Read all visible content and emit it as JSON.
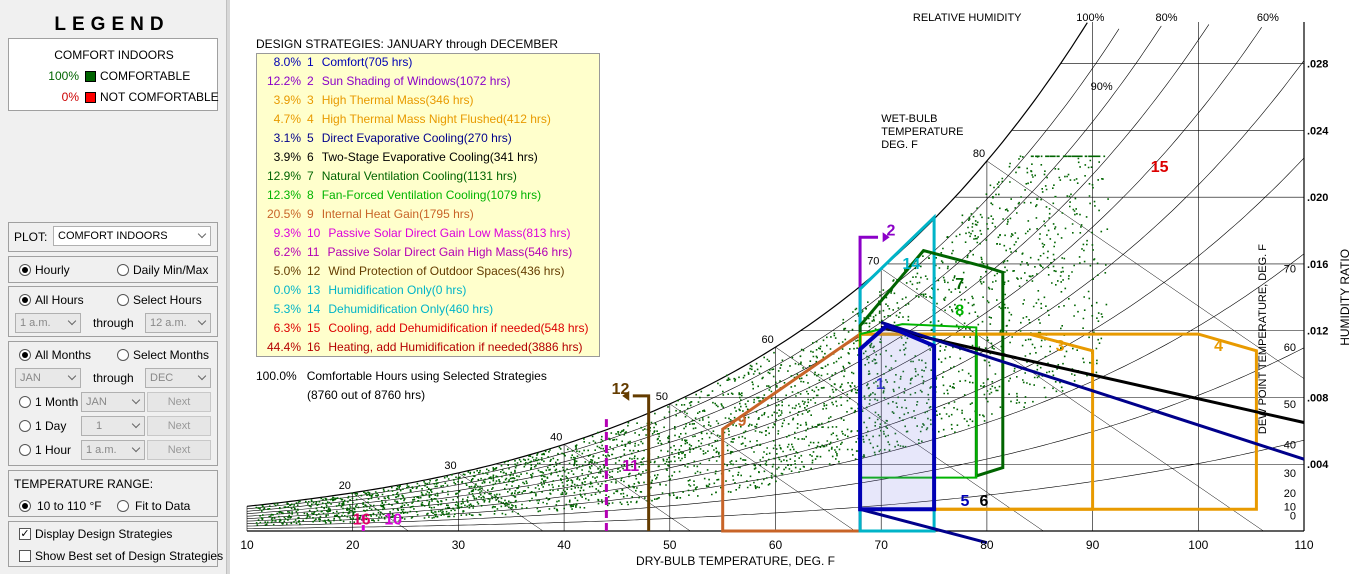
{
  "legend": {
    "title": "LEGEND",
    "heading": "COMFORT INDOORS",
    "items": [
      {
        "pct": "100%",
        "label": "COMFORTABLE",
        "color": "#006400",
        "pct_color": "#006400"
      },
      {
        "pct": "0%",
        "label": "NOT COMFORTABLE",
        "color": "#ff0000",
        "pct_color": "#cc0000"
      }
    ]
  },
  "controls": {
    "plot_label": "PLOT:",
    "plot_value": "COMFORT INDOORS",
    "hourly": "Hourly",
    "daily": "Daily Min/Max",
    "all_hours": "All Hours",
    "select_hours": "Select Hours",
    "hour_from": "1 a.m.",
    "through": "through",
    "hour_to": "12 a.m.",
    "all_months": "All Months",
    "select_months": "Select Months",
    "month_from": "JAN",
    "month_to": "DEC",
    "one_month": "1 Month",
    "one_month_val": "JAN",
    "one_day": "1 Day",
    "one_day_val": "1",
    "one_hour": "1 Hour",
    "one_hour_val": "1 a.m.",
    "next": "Next",
    "temp_range_label": "TEMPERATURE RANGE:",
    "temp_10_110": "10 to 110 °F",
    "fit_to_data": "Fit to Data",
    "display_strategies": "Display Design Strategies",
    "show_best": "Show Best set of Design Strategies"
  },
  "chart_data": {
    "type": "scatter",
    "subtype": "psychrometric chart",
    "xlabel": "DRY-BULB TEMPERATURE, DEG. F",
    "ylabel": "HUMIDITY RATIO",
    "dewpoint_label": "DEW POINT TEMPERATURE, DEG. F",
    "rh_label": "RELATIVE HUMIDITY",
    "wb_label": [
      "WET-BULB",
      "TEMPERATURE",
      "DEG. F"
    ],
    "xlim": [
      10,
      110
    ],
    "ylim": [
      0,
      0.03
    ],
    "x_ticks": [
      10,
      20,
      30,
      40,
      50,
      60,
      70,
      80,
      90,
      100,
      110
    ],
    "y_ticks": [
      ".004",
      ".008",
      ".012",
      ".016",
      ".020",
      ".024",
      ".028"
    ],
    "y_tick_values": [
      0.004,
      0.008,
      0.012,
      0.016,
      0.02,
      0.024,
      0.028
    ],
    "dewpoint_ticks": [
      0,
      10,
      20,
      30,
      40,
      50,
      60,
      70,
      80
    ],
    "rh_curves": [
      10,
      20,
      30,
      40,
      50,
      60,
      70,
      80,
      90,
      100
    ],
    "rh_top_labels": [
      {
        "pct": "100%",
        "rh": 100
      },
      {
        "pct": "80%",
        "rh": 80
      },
      {
        "pct": "60%",
        "rh": 60
      }
    ],
    "rh_inner_label": {
      "text": "90%",
      "rh": 90,
      "t": 90
    },
    "wb_ticks": [
      20,
      30,
      40,
      50,
      60,
      70,
      80
    ],
    "grid": true,
    "point_color": "#006400",
    "strategies_title": "DESIGN STRATEGIES:  JANUARY through DECEMBER",
    "strategies": [
      {
        "pct": "8.0%",
        "num": "1",
        "name": "Comfort(705 hrs)",
        "color": "#0000b4"
      },
      {
        "pct": "12.2%",
        "num": "2",
        "name": "Sun Shading of Windows(1072 hrs)",
        "color": "#8b00c8"
      },
      {
        "pct": "3.9%",
        "num": "3",
        "name": "High Thermal Mass(346 hrs)",
        "color": "#e89a00"
      },
      {
        "pct": "4.7%",
        "num": "4",
        "name": "High Thermal Mass Night Flushed(412 hrs)",
        "color": "#e89a00"
      },
      {
        "pct": "3.1%",
        "num": "5",
        "name": "Direct Evaporative Cooling(270 hrs)",
        "color": "#00008b"
      },
      {
        "pct": "3.9%",
        "num": "6",
        "name": "Two-Stage Evaporative Cooling(341 hrs)",
        "color": "#000000"
      },
      {
        "pct": "12.9%",
        "num": "7",
        "name": "Natural Ventilation Cooling(1131 hrs)",
        "color": "#006400"
      },
      {
        "pct": "12.3%",
        "num": "8",
        "name": "Fan-Forced Ventilation Cooling(1079 hrs)",
        "color": "#00b400"
      },
      {
        "pct": "20.5%",
        "num": "9",
        "name": "Internal Heat Gain(1795 hrs)",
        "color": "#c86428"
      },
      {
        "pct": "9.3%",
        "num": "10",
        "name": "Passive Solar Direct Gain Low Mass(813 hrs)",
        "color": "#dc00dc"
      },
      {
        "pct": "6.2%",
        "num": "11",
        "name": "Passive Solar Direct Gain High Mass(546 hrs)",
        "color": "#b400b4"
      },
      {
        "pct": "5.0%",
        "num": "12",
        "name": "Wind Protection of Outdoor Spaces(436 hrs)",
        "color": "#643c00"
      },
      {
        "pct": "0.0%",
        "num": "13",
        "name": "Humidification Only(0 hrs)",
        "color": "#00b4c8"
      },
      {
        "pct": "5.3%",
        "num": "14",
        "name": "Dehumidification Only(460 hrs)",
        "color": "#00b4c8"
      },
      {
        "pct": "6.3%",
        "num": "15",
        "name": "Cooling, add Dehumidification if needed(548 hrs)",
        "color": "#dc0000"
      },
      {
        "pct": "44.4%",
        "num": "16",
        "name": "Heating, add Humidification if needed(3886 hrs)",
        "color": "#b40000"
      }
    ],
    "total_pct": "100.0%",
    "total_label": "Comfortable Hours using Selected Strategies",
    "total_detail": "(8760 out of 8760 hrs)",
    "zone_labels": [
      {
        "text": "1",
        "t": 69.5,
        "w": 0.0085,
        "color": "#3232c8"
      },
      {
        "text": "2",
        "t": 70.5,
        "w": 0.0177,
        "color": "#8b00c8"
      },
      {
        "text": "3",
        "t": 86.5,
        "w": 0.0108,
        "color": "#e89a00"
      },
      {
        "text": "4",
        "t": 101.5,
        "w": 0.0108,
        "color": "#e89a00"
      },
      {
        "text": "5",
        "t": 77.5,
        "w": 0.0015,
        "color": "#0000b4"
      },
      {
        "text": "6",
        "t": 79.3,
        "w": 0.0015,
        "color": "#000000"
      },
      {
        "text": "7",
        "t": 77,
        "w": 0.0145,
        "color": "#006400"
      },
      {
        "text": "8",
        "t": 77,
        "w": 0.0129,
        "color": "#00b400"
      },
      {
        "text": "9",
        "t": 56.4,
        "w": 0.0063,
        "color": "#c86428"
      },
      {
        "text": "10",
        "t": 23,
        "w": 0.0004,
        "color": "#dc00dc"
      },
      {
        "text": "11",
        "t": 45.5,
        "w": 0.0036,
        "color": "#b400b4"
      },
      {
        "text": "12",
        "t": 44.5,
        "w": 0.0082,
        "color": "#643c00"
      },
      {
        "text": "14",
        "t": 72,
        "w": 0.0157,
        "color": "#00b4c8"
      },
      {
        "text": "15",
        "t": 95.5,
        "w": 0.0215,
        "color": "#dc0000"
      },
      {
        "text": "16",
        "t": 20,
        "w": 0.0004,
        "color": "#dc0064"
      }
    ]
  }
}
